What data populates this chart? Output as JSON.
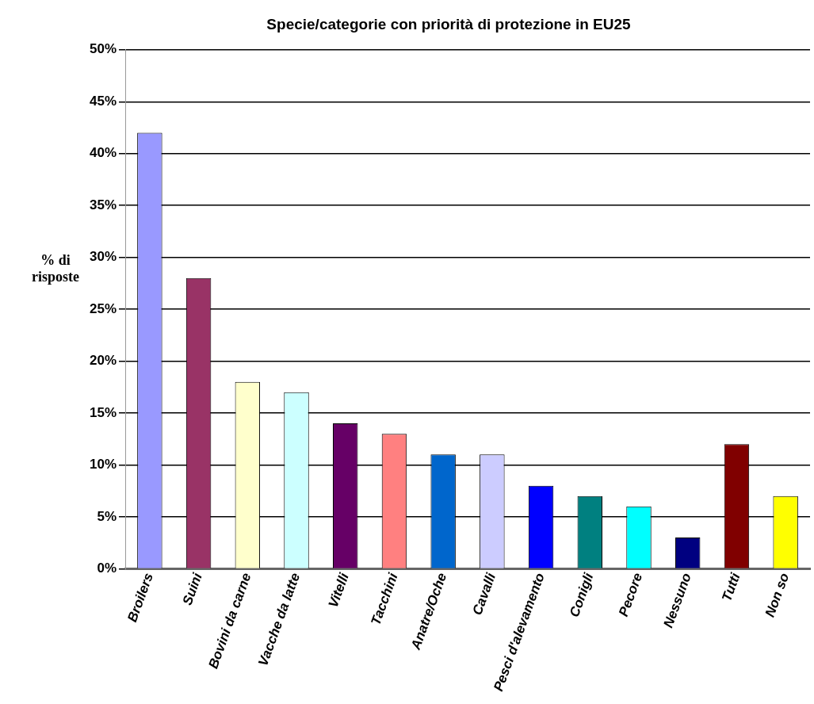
{
  "chart_data": {
    "type": "bar",
    "title": "Specie/categorie con priorità di protezione in EU25",
    "ylabel": "% di risposte",
    "categories": [
      "Broilers",
      "Suini",
      "Bovini da carne",
      "Vacche da latte",
      "Vitelli",
      "Tacchini",
      "Anatre/Oche",
      "Cavalli",
      "Pesci d'alevamento",
      "Conigli",
      "Pecore",
      "Nessuno",
      "Tutti",
      "Non so"
    ],
    "values": [
      42,
      28,
      18,
      17,
      14,
      13,
      11,
      11,
      8,
      7,
      6,
      3,
      12,
      7
    ],
    "colors": [
      "#9999ff",
      "#993366",
      "#ffffcc",
      "#ccffff",
      "#660066",
      "#ff8080",
      "#0066cc",
      "#ccccff",
      "#0000ff",
      "#008080",
      "#00ffff",
      "#000080",
      "#800000",
      "#ffff00"
    ],
    "ylim": [
      0,
      50
    ],
    "yticks": [
      {
        "value": 0,
        "label": "0%"
      },
      {
        "value": 5,
        "label": "5%"
      },
      {
        "value": 10,
        "label": "10%"
      },
      {
        "value": 15,
        "label": "15%"
      },
      {
        "value": 20,
        "label": "20%"
      },
      {
        "value": 25,
        "label": "25%"
      },
      {
        "value": 30,
        "label": "30%"
      },
      {
        "value": 35,
        "label": "35%"
      },
      {
        "value": 40,
        "label": "40%"
      },
      {
        "value": 45,
        "label": "45%"
      },
      {
        "value": 50,
        "label": "50%"
      }
    ],
    "grid": "y",
    "legend": false
  }
}
